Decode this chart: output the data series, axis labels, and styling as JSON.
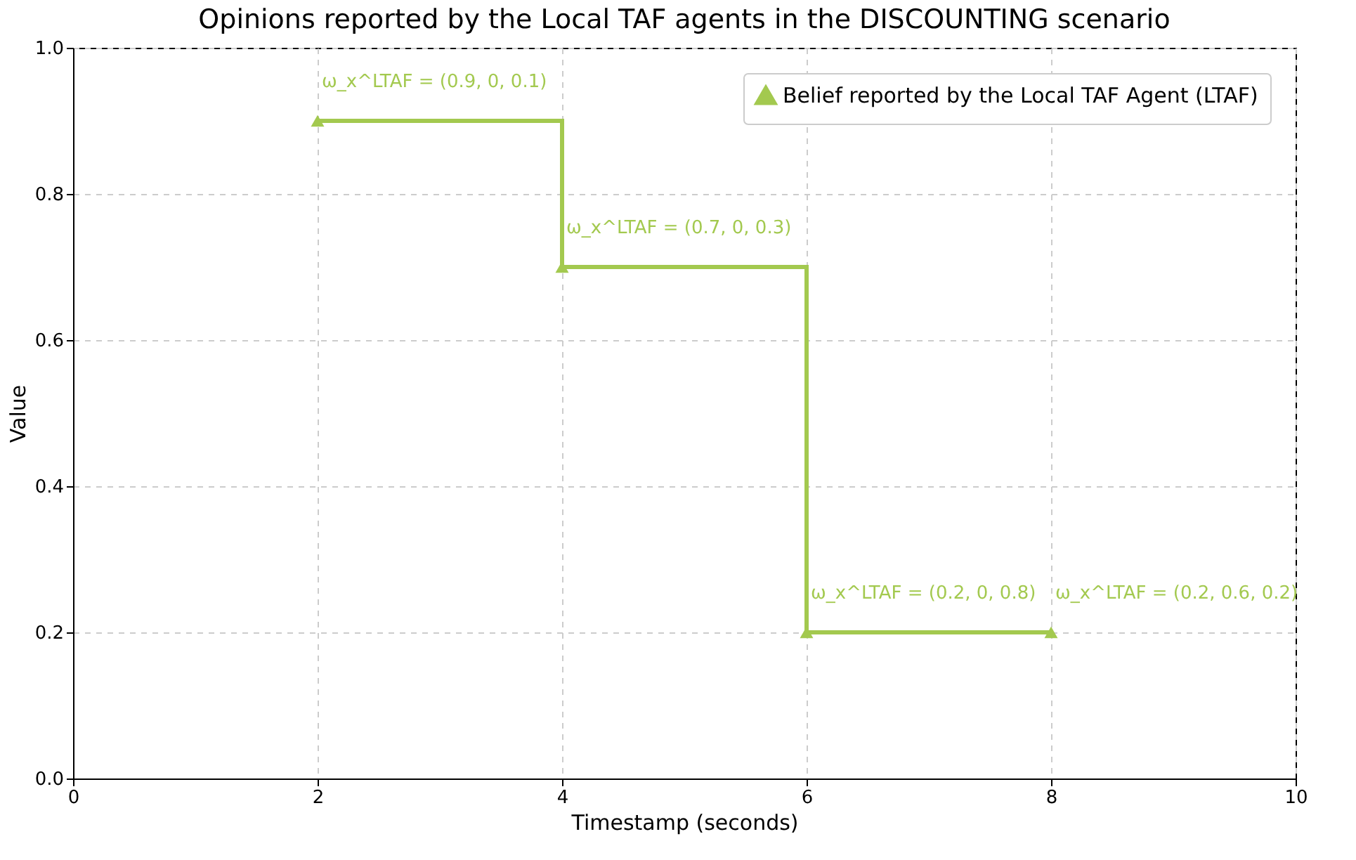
{
  "chart_data": {
    "type": "step",
    "title": "Opinions reported by the Local TAF agents in the DISCOUNTING scenario",
    "xlabel": "Timestamp (seconds)",
    "ylabel": "Value",
    "x": [
      2,
      4,
      6,
      8
    ],
    "series": [
      {
        "name": "Belief reported by the Local TAF Agent (LTAF)",
        "color": "#a3c94f",
        "values": [
          0.9,
          0.7,
          0.2,
          0.2
        ]
      }
    ],
    "annotations": [
      {
        "text": "ω_x^LTAF = (0.9, 0, 0.1)",
        "x": 2,
        "y": 0.9
      },
      {
        "text": "ω_x^LTAF = (0.7, 0, 0.3)",
        "x": 4,
        "y": 0.7
      },
      {
        "text": "ω_x^LTAF = (0.2, 0, 0.8)",
        "x": 6,
        "y": 0.2
      },
      {
        "text": "ω_x^LTAF = (0.2, 0.6, 0.2)",
        "x": 8,
        "y": 0.2
      }
    ],
    "xlim": [
      0,
      10
    ],
    "xticks": [
      0,
      2,
      4,
      6,
      8,
      10
    ],
    "ylim": [
      0,
      1
    ],
    "yticks": [
      {
        "value": 0,
        "label": "0.0"
      },
      0.2,
      0.4,
      0.6,
      0.8,
      {
        "value": 1,
        "label": "1.0"
      }
    ],
    "grid": true,
    "legend": "top right",
    "marker": "triangle",
    "line_style": "solid"
  }
}
